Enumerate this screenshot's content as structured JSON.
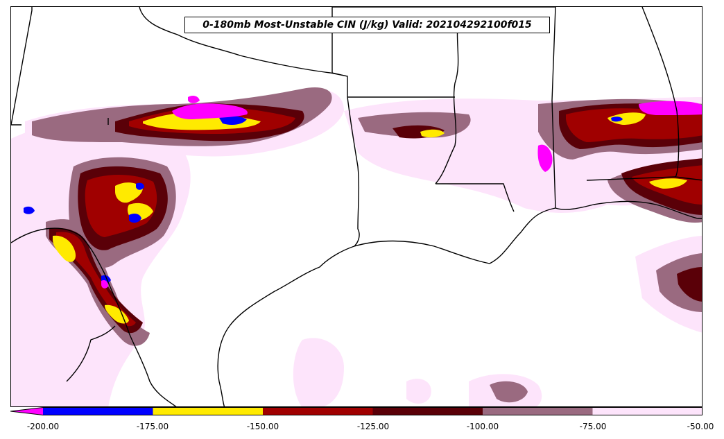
{
  "title": "0-180mb Most-Unstable CIN (J/kg) Valid: 202104292100f015",
  "colorbar": {
    "ticks": [
      "-200.00",
      "-175.00",
      "-150.00",
      "-125.00",
      "-100.00",
      "-75.00",
      "-50.00"
    ],
    "bins": [
      {
        "color": "#ff00ff"
      },
      {
        "color": "#0000ff"
      },
      {
        "color": "#ffea00"
      },
      {
        "color": "#a00000"
      },
      {
        "color": "#5a0008"
      },
      {
        "color": "#9a6a80"
      },
      {
        "color": "#fde4fb"
      }
    ]
  },
  "palette": {
    "lightest": "#fde4fb",
    "mauve": "#9a6a80",
    "darkred": "#5a0008",
    "red": "#a00000",
    "yellow": "#ffea00",
    "blue": "#0000ff",
    "magenta": "#ff00ff"
  }
}
